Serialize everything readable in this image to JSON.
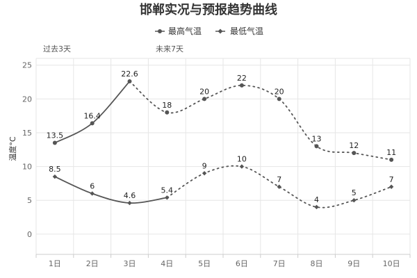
{
  "chart_data": {
    "type": "line",
    "title": "邯郸实况与预报趋势曲线",
    "xlabel": "",
    "ylabel": "温度°C",
    "ylim": [
      -3,
      26
    ],
    "yticks": [
      0,
      5,
      10,
      15,
      20,
      25
    ],
    "categories": [
      "1日",
      "2日",
      "3日",
      "4日",
      "5日",
      "6日",
      "7日",
      "8日",
      "9日",
      "10日"
    ],
    "section_labels": {
      "past": "过去3天",
      "future": "未来7天"
    },
    "observed_until_index": 3,
    "grid": true,
    "legend_position": "top",
    "series": [
      {
        "name": "最高气温",
        "values": [
          13.5,
          16.4,
          22.6,
          18,
          20,
          22,
          20,
          13,
          12,
          11
        ],
        "labels": [
          "13.5",
          "16.4",
          "22.6",
          "18",
          "20",
          "22",
          "20",
          "13",
          "12",
          "11"
        ],
        "color": "#555555",
        "marker": "circle",
        "observed_points": 3
      },
      {
        "name": "最低气温",
        "values": [
          8.5,
          6,
          4.6,
          5.4,
          9,
          10,
          7,
          4,
          5,
          7
        ],
        "labels": [
          "8.5",
          "6",
          "4.6",
          "5.4",
          "9",
          "10",
          "7",
          "4",
          "5",
          "7"
        ],
        "color": "#555555",
        "marker": "diamond",
        "observed_points": 4
      }
    ]
  }
}
